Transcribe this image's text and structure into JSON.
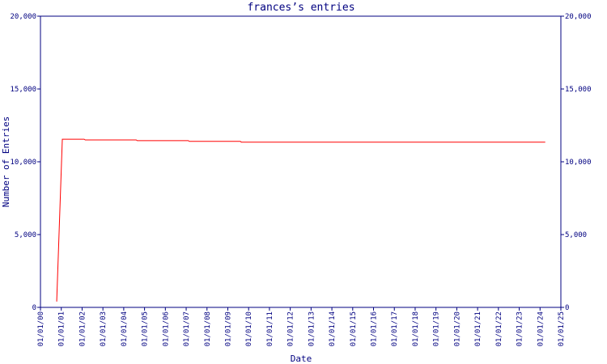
{
  "chart_data": {
    "type": "line",
    "title": "frances’s entries",
    "x_label": "Date",
    "y_label": "Number of Entries",
    "x": [
      2000.78,
      2001.05,
      2002.1,
      2002.15,
      2004.6,
      2004.65,
      2007.1,
      2007.15,
      2009.6,
      2009.65,
      2024.25
    ],
    "series": [
      {
        "name": "entries",
        "color": "#ff0000",
        "values": [
          400,
          11550,
          11550,
          11500,
          11500,
          11450,
          11450,
          11400,
          11400,
          11350,
          11350
        ]
      }
    ],
    "xlim": [
      2000,
      2025
    ],
    "xticks": [
      {
        "value": 2000,
        "label": "01/01/00"
      },
      {
        "value": 2001,
        "label": "01/01/01"
      },
      {
        "value": 2002,
        "label": "01/01/02"
      },
      {
        "value": 2003,
        "label": "01/01/03"
      },
      {
        "value": 2004,
        "label": "01/01/04"
      },
      {
        "value": 2005,
        "label": "01/01/05"
      },
      {
        "value": 2006,
        "label": "01/01/06"
      },
      {
        "value": 2007,
        "label": "01/01/07"
      },
      {
        "value": 2008,
        "label": "01/01/08"
      },
      {
        "value": 2009,
        "label": "01/01/09"
      },
      {
        "value": 2010,
        "label": "01/01/10"
      },
      {
        "value": 2011,
        "label": "01/01/11"
      },
      {
        "value": 2012,
        "label": "01/01/12"
      },
      {
        "value": 2013,
        "label": "01/01/13"
      },
      {
        "value": 2014,
        "label": "01/01/14"
      },
      {
        "value": 2015,
        "label": "01/01/15"
      },
      {
        "value": 2016,
        "label": "01/01/16"
      },
      {
        "value": 2017,
        "label": "01/01/17"
      },
      {
        "value": 2018,
        "label": "01/01/18"
      },
      {
        "value": 2019,
        "label": "01/01/19"
      },
      {
        "value": 2020,
        "label": "01/01/20"
      },
      {
        "value": 2021,
        "label": "01/01/21"
      },
      {
        "value": 2022,
        "label": "01/01/22"
      },
      {
        "value": 2023,
        "label": "01/01/23"
      },
      {
        "value": 2024,
        "label": "01/01/24"
      },
      {
        "value": 2025,
        "label": "01/01/25"
      }
    ],
    "ylim": [
      0,
      20000
    ],
    "yticks": [
      0,
      {
        "value": 5000,
        "label": "5,000"
      },
      {
        "value": 10000,
        "label": "10,000"
      },
      {
        "value": 15000,
        "label": "15,000"
      },
      {
        "value": 20000,
        "label": "20,000"
      }
    ],
    "axis_color": "#000080"
  }
}
